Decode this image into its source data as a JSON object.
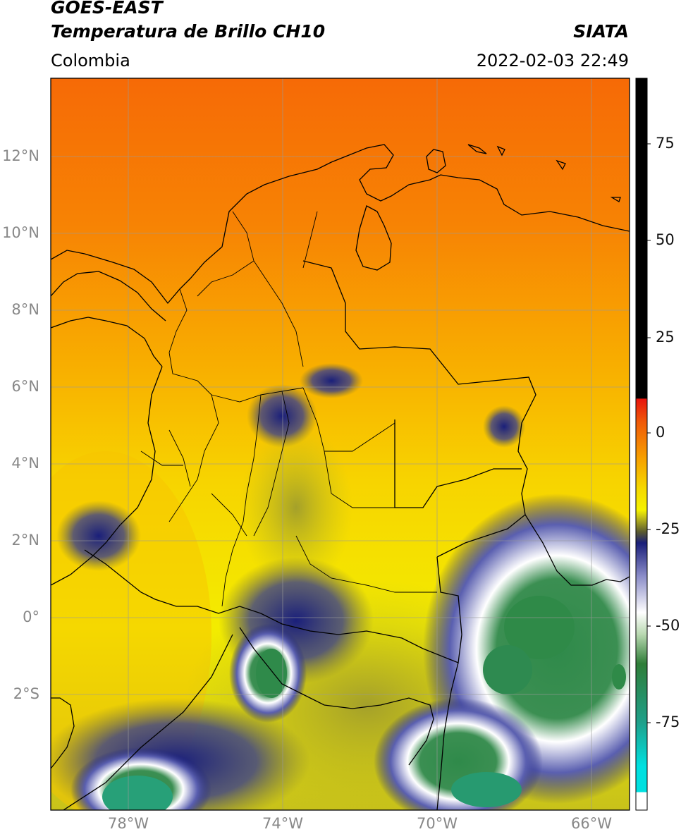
{
  "header": {
    "satellite": "GOES-EAST",
    "product": "Temperatura de Brillo CH10",
    "region": "Colombia",
    "source": "SIATA",
    "datetime": "2022-02-03 22:49"
  },
  "map": {
    "lat_ticks": [
      "12°N",
      "10°N",
      "8°N",
      "6°N",
      "4°N",
      "2°N",
      "0°",
      "2°S"
    ],
    "lon_ticks": [
      "78°W",
      "74°W",
      "70°W",
      "66°W"
    ]
  },
  "colorbar": {
    "ticks": [
      "75",
      "50",
      "25",
      "0",
      "-25",
      "-50",
      "-75"
    ],
    "colors": {
      "black": "#000000",
      "red": "#e8140c",
      "orange": "#f7a100",
      "yellow": "#f5f200",
      "olive": "#8c8a2a",
      "navy": "#1a1f7a",
      "white": "#ffffff",
      "green": "#2f7d38",
      "teal": "#1fa08a",
      "cyan": "#00e0e0"
    }
  }
}
